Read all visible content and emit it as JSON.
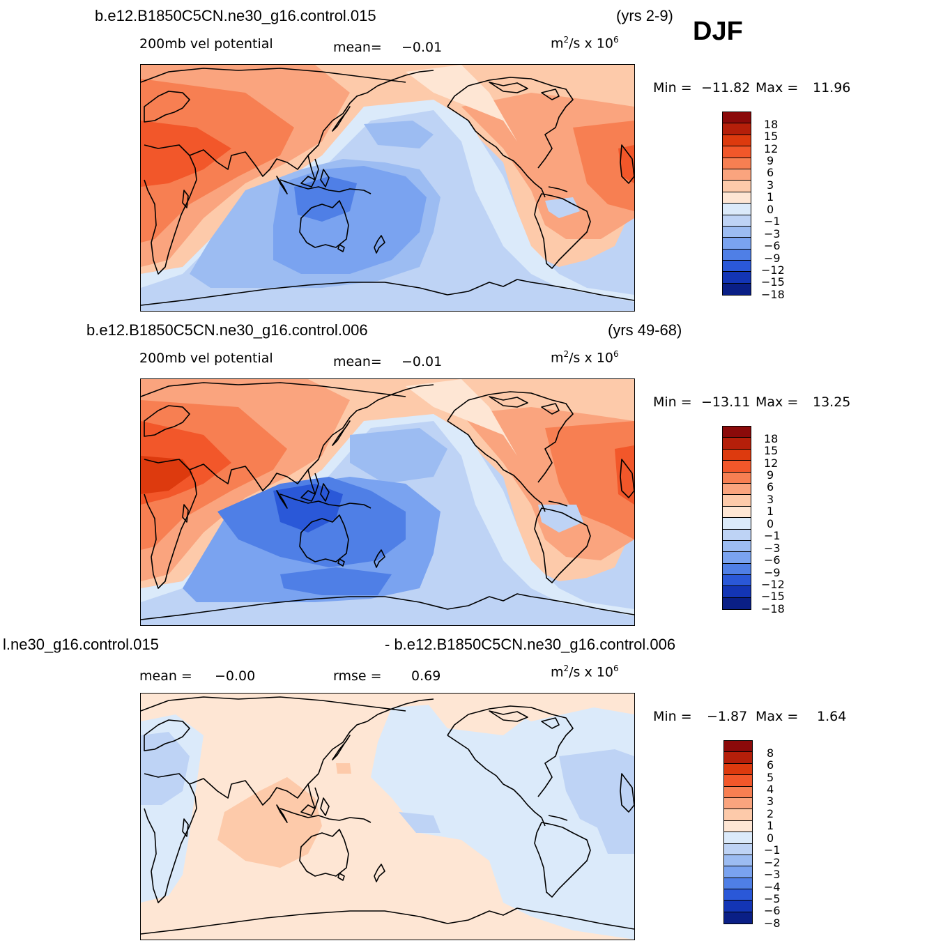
{
  "season": "DJF",
  "panels": [
    {
      "case": "b.e12.B1850C5CN.ne30_g16.control.015",
      "years": "(yrs 2-9)",
      "variable": "200mb vel potential",
      "stat1_label": "mean=",
      "stat1_value": "−0.01",
      "units_base": "m",
      "units_exp": "2",
      "units_tail": "/s x 10",
      "units_exp2": "6",
      "min_label": "Min =",
      "min_value": "−11.82",
      "max_label": "Max =",
      "max_value": "11.96",
      "levels": [
        "18",
        "15",
        "12",
        "9",
        "6",
        "3",
        "1",
        "0",
        "−1",
        "−3",
        "−6",
        "−9",
        "−12",
        "−15",
        "−18"
      ]
    },
    {
      "case": "b.e12.B1850C5CN.ne30_g16.control.006",
      "years": "(yrs 49-68)",
      "variable": "200mb vel potential",
      "stat1_label": "mean=",
      "stat1_value": "−0.01",
      "units_base": "m",
      "units_exp": "2",
      "units_tail": "/s x 10",
      "units_exp2": "6",
      "min_label": "Min =",
      "min_value": "−13.11",
      "max_label": "Max =",
      "max_value": "13.25",
      "levels": [
        "18",
        "15",
        "12",
        "9",
        "6",
        "3",
        "1",
        "0",
        "−1",
        "−3",
        "−6",
        "−9",
        "−12",
        "−15",
        "−18"
      ]
    },
    {
      "case_left": "l.ne30_g16.control.015",
      "case_right": "- b.e12.B1850C5CN.ne30_g16.control.006",
      "stat1_label": "mean =",
      "stat1_value": "−0.00",
      "stat2_label": "rmse =",
      "stat2_value": "0.69",
      "units_base": "m",
      "units_exp": "2",
      "units_tail": "/s x 10",
      "units_exp2": "6",
      "min_label": "Min =",
      "min_value": "−1.87",
      "max_label": "Max =",
      "max_value": "1.64",
      "levels": [
        "8",
        "6",
        "5",
        "4",
        "3",
        "2",
        "1",
        "0",
        "−1",
        "−2",
        "−3",
        "−4",
        "−5",
        "−6",
        "−8"
      ]
    }
  ],
  "colors": {
    "scale": [
      "#8b0a0a",
      "#b51f0a",
      "#dd3a0e",
      "#f2572a",
      "#f77f52",
      "#faa47e",
      "#fdcaaa",
      "#fee6d4",
      "#dbeafa",
      "#bed3f5",
      "#9cbcf2",
      "#7aa3f0",
      "#4f7fe6",
      "#2a58d8",
      "#1335b5",
      "#0a1f86"
    ]
  }
}
